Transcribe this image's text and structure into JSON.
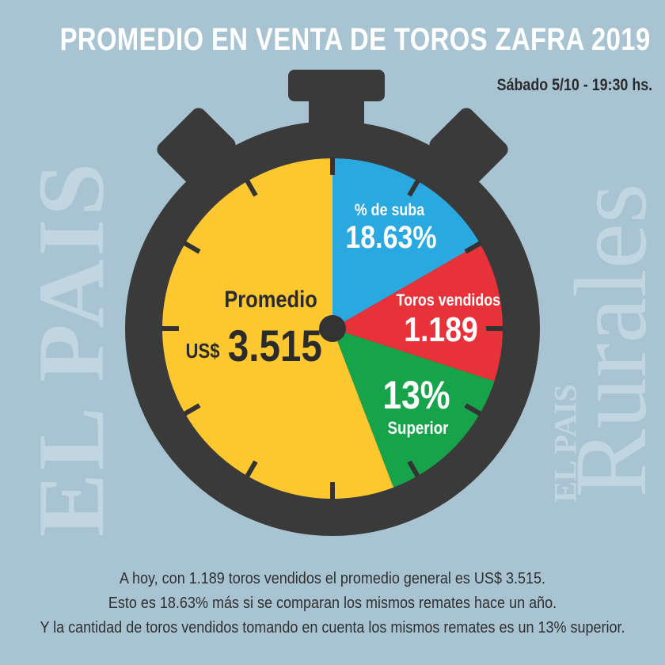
{
  "title": "PROMEDIO EN VENTA DE TOROS ZAFRA 2019",
  "date": "Sábado 5/10 - 19:30 hs.",
  "watermark": {
    "left": "EL PAIS",
    "right_small": "EL PAIS",
    "right_large": "Rurales"
  },
  "segments": {
    "promedio": {
      "label": "Promedio",
      "currency": "US$",
      "value": "3.515",
      "color": "#fdc82f"
    },
    "suba": {
      "label": "% de suba",
      "value": "18.63%",
      "color": "#2aa8e0"
    },
    "vendidos": {
      "label": "Toros vendidos",
      "value": "1.189",
      "color": "#e8323a"
    },
    "superior": {
      "value": "13%",
      "label": "Superior",
      "color": "#16a34a"
    }
  },
  "footer": {
    "line1": "A hoy, con 1.189 toros vendidos el promedio general es US$ 3.515.",
    "line2": "Esto es 18.63% más si se comparan los mismos remates hace un año.",
    "line3": "Y la cantidad de toros vendidos tomando en cuenta los mismos remates es un 13% superior."
  },
  "colors": {
    "background": "#a8c4d3",
    "stopwatch": "#3a3a3a"
  }
}
